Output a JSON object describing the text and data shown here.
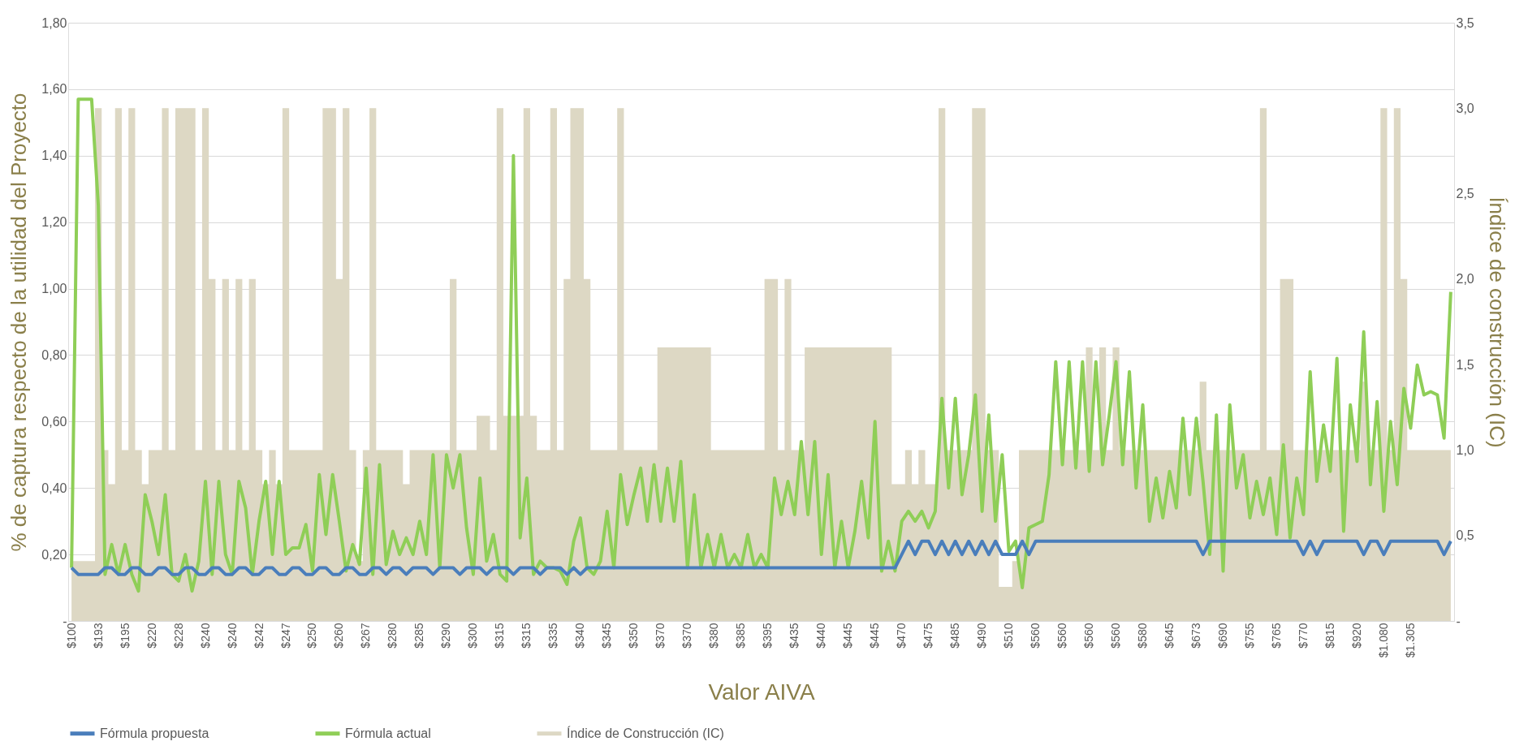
{
  "chart_data": {
    "type": "line",
    "xlabel": "Valor  AIVA",
    "ylabel": "% de captura respecto de la utilidad del Proyecto",
    "y2label": "Índice de construcción (IC)",
    "categories": [
      "$100",
      null,
      null,
      null,
      "$193",
      null,
      null,
      null,
      "$195",
      null,
      null,
      null,
      "$220",
      null,
      null,
      null,
      "$228",
      null,
      null,
      null,
      "$240",
      null,
      null,
      null,
      "$240",
      null,
      null,
      null,
      "$242",
      null,
      null,
      null,
      "$247",
      null,
      null,
      null,
      "$250",
      null,
      null,
      null,
      "$260",
      null,
      null,
      null,
      "$267",
      null,
      null,
      null,
      "$280",
      null,
      null,
      null,
      "$285",
      null,
      null,
      null,
      "$290",
      null,
      null,
      null,
      "$300",
      null,
      null,
      null,
      "$315",
      null,
      null,
      null,
      "$315",
      null,
      null,
      null,
      "$335",
      null,
      null,
      null,
      "$340",
      null,
      null,
      null,
      "$345",
      null,
      null,
      null,
      "$350",
      null,
      null,
      null,
      "$370",
      null,
      null,
      null,
      "$370",
      null,
      null,
      null,
      "$380",
      null,
      null,
      null,
      "$385",
      null,
      null,
      null,
      "$395",
      null,
      null,
      null,
      "$435",
      null,
      null,
      null,
      "$440",
      null,
      null,
      null,
      "$445",
      null,
      null,
      null,
      "$445",
      null,
      null,
      null,
      "$470",
      null,
      null,
      null,
      "$475",
      null,
      null,
      null,
      "$485",
      null,
      null,
      null,
      "$490",
      null,
      null,
      null,
      "$510",
      null,
      null,
      null,
      "$560",
      null,
      null,
      null,
      "$560",
      null,
      null,
      null,
      "$560",
      null,
      null,
      null,
      "$560",
      null,
      null,
      null,
      "$580",
      null,
      null,
      null,
      "$645",
      null,
      null,
      null,
      "$673",
      null,
      null,
      null,
      "$690",
      null,
      null,
      null,
      "$755",
      null,
      null,
      null,
      "$765",
      null,
      null,
      null,
      "$770",
      null,
      null,
      null,
      "$815",
      null,
      null,
      null,
      "$920",
      null,
      null,
      null,
      "$1.080",
      null,
      null,
      null,
      "$1.305",
      null,
      null,
      null,
      null,
      null,
      null
    ],
    "series": [
      {
        "name": "Índice de Construcción (IC)",
        "type": "area",
        "axis": "y2",
        "color": "#ddd8c4",
        "values": [
          0.35,
          0.35,
          0.35,
          0.35,
          3.0,
          1.0,
          0.8,
          3.0,
          1.0,
          3.0,
          1.0,
          0.8,
          1.0,
          1.0,
          3.0,
          1.0,
          3.0,
          3.0,
          3.0,
          1.0,
          3.0,
          2.0,
          1.0,
          2.0,
          1.0,
          2.0,
          1.0,
          2.0,
          1.0,
          0.8,
          1.0,
          0.8,
          3.0,
          1.0,
          1.0,
          1.0,
          1.0,
          1.0,
          3.0,
          3.0,
          2.0,
          3.0,
          1.0,
          0.35,
          1.0,
          3.0,
          1.0,
          1.0,
          1.0,
          1.0,
          0.8,
          1.0,
          1.0,
          1.0,
          1.0,
          1.0,
          1.0,
          2.0,
          1.0,
          1.0,
          1.0,
          1.2,
          1.2,
          1.0,
          3.0,
          1.2,
          1.2,
          1.2,
          3.0,
          1.2,
          1.0,
          1.0,
          3.0,
          1.0,
          2.0,
          3.0,
          3.0,
          2.0,
          1.0,
          1.0,
          1.0,
          1.0,
          3.0,
          1.0,
          1.0,
          1.0,
          1.0,
          1.0,
          1.6,
          1.6,
          1.6,
          1.6,
          1.6,
          1.6,
          1.6,
          1.6,
          1.0,
          1.0,
          1.0,
          1.0,
          1.0,
          1.0,
          1.0,
          1.0,
          2.0,
          2.0,
          1.0,
          2.0,
          1.0,
          1.0,
          1.6,
          1.6,
          1.6,
          1.6,
          1.6,
          1.6,
          1.6,
          1.6,
          1.6,
          1.6,
          1.6,
          1.6,
          1.6,
          0.8,
          0.8,
          1.0,
          0.8,
          1.0,
          0.8,
          0.8,
          3.0,
          1.0,
          1.0,
          1.0,
          1.0,
          3.0,
          3.0,
          1.0,
          1.0,
          0.2,
          0.2,
          0.35,
          1.0,
          1.0,
          1.0,
          1.0,
          1.0,
          1.0,
          1.0,
          1.0,
          1.0,
          1.0,
          1.6,
          1.0,
          1.6,
          1.0,
          1.6,
          1.0,
          1.0,
          1.0,
          1.0,
          1.0,
          1.0,
          1.0,
          1.0,
          1.0,
          1.0,
          1.0,
          1.0,
          1.4,
          1.0,
          1.0,
          1.0,
          1.0,
          1.0,
          1.0,
          1.0,
          1.0,
          3.0,
          1.0,
          1.0,
          2.0,
          2.0,
          1.0,
          1.0,
          1.0,
          1.0,
          1.0,
          1.0,
          1.0,
          1.0,
          1.0,
          1.0,
          1.4,
          1.0,
          1.0,
          3.0,
          1.0,
          3.0,
          2.0,
          1.0,
          1.0,
          1.0,
          1.0,
          1.0,
          1.0,
          1.0
        ]
      },
      {
        "name": "Fórmula actual",
        "color": "#8fce57",
        "values": [
          0.16,
          1.57,
          1.57,
          1.57,
          1.25,
          0.14,
          0.23,
          0.14,
          0.23,
          0.14,
          0.09,
          0.38,
          0.3,
          0.2,
          0.38,
          0.14,
          0.12,
          0.2,
          0.09,
          0.18,
          0.42,
          0.14,
          0.42,
          0.2,
          0.14,
          0.42,
          0.34,
          0.14,
          0.3,
          0.42,
          0.2,
          0.42,
          0.2,
          0.22,
          0.22,
          0.29,
          0.15,
          0.44,
          0.26,
          0.44,
          0.3,
          0.15,
          0.23,
          0.17,
          0.46,
          0.14,
          0.47,
          0.17,
          0.27,
          0.2,
          0.25,
          0.2,
          0.3,
          0.2,
          0.5,
          0.16,
          0.5,
          0.4,
          0.5,
          0.28,
          0.14,
          0.43,
          0.18,
          0.26,
          0.14,
          0.12,
          1.4,
          0.25,
          0.43,
          0.14,
          0.18,
          0.16,
          0.16,
          0.15,
          0.11,
          0.24,
          0.31,
          0.16,
          0.14,
          0.18,
          0.33,
          0.16,
          0.44,
          0.29,
          0.38,
          0.46,
          0.3,
          0.47,
          0.3,
          0.46,
          0.3,
          0.48,
          0.16,
          0.38,
          0.16,
          0.26,
          0.16,
          0.26,
          0.16,
          0.2,
          0.16,
          0.26,
          0.16,
          0.2,
          0.16,
          0.43,
          0.32,
          0.42,
          0.32,
          0.54,
          0.32,
          0.54,
          0.2,
          0.44,
          0.16,
          0.3,
          0.16,
          0.27,
          0.42,
          0.25,
          0.6,
          0.15,
          0.24,
          0.15,
          0.3,
          0.33,
          0.3,
          0.33,
          0.28,
          0.33,
          0.67,
          0.4,
          0.67,
          0.38,
          0.5,
          0.68,
          0.33,
          0.62,
          0.3,
          0.5,
          0.21,
          0.24,
          0.1,
          0.28,
          0.29,
          0.3,
          0.44,
          0.78,
          0.47,
          0.78,
          0.46,
          0.78,
          0.45,
          0.78,
          0.47,
          0.62,
          0.78,
          0.47,
          0.75,
          0.4,
          0.65,
          0.3,
          0.43,
          0.31,
          0.45,
          0.34,
          0.61,
          0.38,
          0.61,
          0.42,
          0.2,
          0.62,
          0.15,
          0.65,
          0.4,
          0.5,
          0.31,
          0.42,
          0.32,
          0.43,
          0.26,
          0.53,
          0.25,
          0.43,
          0.32,
          0.75,
          0.42,
          0.59,
          0.45,
          0.79,
          0.27,
          0.65,
          0.48,
          0.87,
          0.41,
          0.66,
          0.33,
          0.6,
          0.41,
          0.7,
          0.58,
          0.77,
          0.68,
          0.69,
          0.68,
          0.55,
          0.99
        ]
      },
      {
        "name": "Fórmula propuesta",
        "color": "#4a7ebb",
        "values": [
          0.16,
          0.14,
          0.14,
          0.14,
          0.14,
          0.16,
          0.16,
          0.14,
          0.14,
          0.16,
          0.16,
          0.14,
          0.14,
          0.16,
          0.16,
          0.14,
          0.14,
          0.16,
          0.16,
          0.14,
          0.14,
          0.16,
          0.16,
          0.14,
          0.14,
          0.16,
          0.16,
          0.14,
          0.14,
          0.16,
          0.16,
          0.14,
          0.14,
          0.16,
          0.16,
          0.14,
          0.14,
          0.16,
          0.16,
          0.14,
          0.14,
          0.16,
          0.16,
          0.14,
          0.14,
          0.16,
          0.16,
          0.14,
          0.16,
          0.16,
          0.14,
          0.16,
          0.16,
          0.16,
          0.14,
          0.16,
          0.16,
          0.16,
          0.14,
          0.16,
          0.16,
          0.16,
          0.14,
          0.16,
          0.16,
          0.16,
          0.14,
          0.16,
          0.16,
          0.16,
          0.14,
          0.16,
          0.16,
          0.16,
          0.14,
          0.16,
          0.14,
          0.16,
          0.16,
          0.16,
          0.16,
          0.16,
          0.16,
          0.16,
          0.16,
          0.16,
          0.16,
          0.16,
          0.16,
          0.16,
          0.16,
          0.16,
          0.16,
          0.16,
          0.16,
          0.16,
          0.16,
          0.16,
          0.16,
          0.16,
          0.16,
          0.16,
          0.16,
          0.16,
          0.16,
          0.16,
          0.16,
          0.16,
          0.16,
          0.16,
          0.16,
          0.16,
          0.16,
          0.16,
          0.16,
          0.16,
          0.16,
          0.16,
          0.16,
          0.16,
          0.16,
          0.16,
          0.16,
          0.16,
          0.2,
          0.24,
          0.2,
          0.24,
          0.24,
          0.2,
          0.24,
          0.2,
          0.24,
          0.2,
          0.24,
          0.2,
          0.24,
          0.2,
          0.24,
          0.2,
          0.2,
          0.2,
          0.24,
          0.2,
          0.24,
          0.24,
          0.24,
          0.24,
          0.24,
          0.24,
          0.24,
          0.24,
          0.24,
          0.24,
          0.24,
          0.24,
          0.24,
          0.24,
          0.24,
          0.24,
          0.24,
          0.24,
          0.24,
          0.24,
          0.24,
          0.24,
          0.24,
          0.24,
          0.24,
          0.2,
          0.24,
          0.24,
          0.24,
          0.24,
          0.24,
          0.24,
          0.24,
          0.24,
          0.24,
          0.24,
          0.24,
          0.24,
          0.24,
          0.24,
          0.2,
          0.24,
          0.2,
          0.24,
          0.24,
          0.24,
          0.24,
          0.24,
          0.24,
          0.2,
          0.24,
          0.24,
          0.2,
          0.24,
          0.24,
          0.24,
          0.24,
          0.24,
          0.24,
          0.24,
          0.24,
          0.2,
          0.24
        ]
      }
    ],
    "ylim": [
      0,
      1.8
    ],
    "yticks": [
      {
        "value": 0,
        "label": "-"
      },
      {
        "value": 0.2,
        "label": "0,20"
      },
      {
        "value": 0.4,
        "label": "0,40"
      },
      {
        "value": 0.6,
        "label": "0,60"
      },
      {
        "value": 0.8,
        "label": "0,80"
      },
      {
        "value": 1.0,
        "label": "1,00"
      },
      {
        "value": 1.2,
        "label": "1,20"
      },
      {
        "value": 1.4,
        "label": "1,40"
      },
      {
        "value": 1.6,
        "label": "1,60"
      },
      {
        "value": 1.8,
        "label": "1,80"
      }
    ],
    "y2lim": [
      0,
      3.5
    ],
    "y2ticks": [
      {
        "value": 0,
        "label": "-"
      },
      {
        "value": 0.5,
        "label": "0,5"
      },
      {
        "value": 1.0,
        "label": "1,0"
      },
      {
        "value": 1.5,
        "label": "1,5"
      },
      {
        "value": 2.0,
        "label": "2,0"
      },
      {
        "value": 2.5,
        "label": "2,5"
      },
      {
        "value": 3.0,
        "label": "3,0"
      },
      {
        "value": 3.5,
        "label": "3,5"
      }
    ],
    "grid": "y",
    "legend": "bottom",
    "marker": "none"
  }
}
